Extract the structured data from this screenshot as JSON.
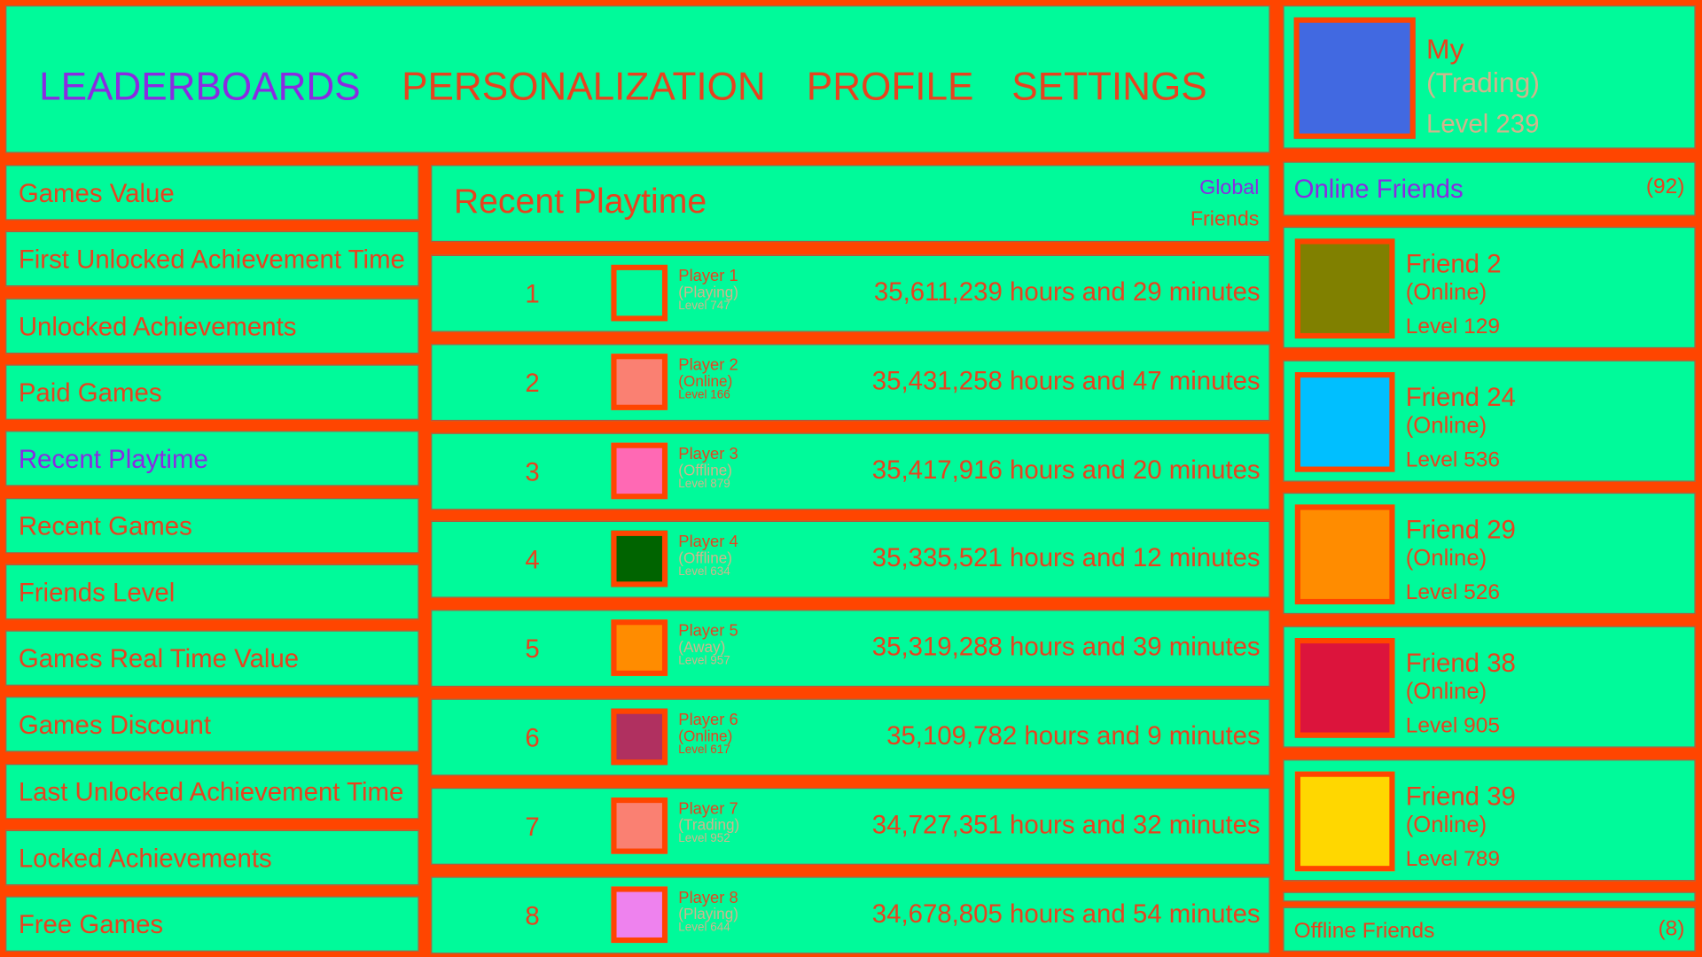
{
  "nav": {
    "items": [
      {
        "label": "LEADERBOARDS",
        "active": true
      },
      {
        "label": "PERSONALIZATION"
      },
      {
        "label": "PROFILE"
      },
      {
        "label": "SETTINGS"
      }
    ]
  },
  "profile": {
    "name": "My",
    "status": "(Trading)",
    "level": "Level 239",
    "avatar_color": "#4169e1"
  },
  "sidebar": {
    "items": [
      "Games Value",
      "First Unlocked Achievement Time",
      "Unlocked Achievements",
      "Paid Games",
      "Recent Playtime",
      "Recent Games",
      "Friends Level",
      "Games Real Time Value",
      "Games Discount",
      "Last Unlocked Achievement Time",
      "Locked Achievements",
      "Free Games"
    ],
    "active": "Recent Playtime"
  },
  "leaderboard": {
    "title": "Recent Playtime",
    "scope_global": "Global",
    "scope_friends": "Friends",
    "rows": [
      {
        "rank": "1",
        "name": "Player 1",
        "status": "(Playing)",
        "level": "Level 747",
        "time": "35,611,239 hours and 29 minutes",
        "color": "#00fa9a"
      },
      {
        "rank": "2",
        "name": "Player 2",
        "status": "(Online)",
        "level": "Level 166",
        "time": "35,431,258 hours and 47 minutes",
        "color": "#fa8072"
      },
      {
        "rank": "3",
        "name": "Player 3",
        "status": "(Offline)",
        "level": "Level 879",
        "time": "35,417,916 hours and 20 minutes",
        "color": "#ff69b4"
      },
      {
        "rank": "4",
        "name": "Player 4",
        "status": "(Offline)",
        "level": "Level 634",
        "time": "35,335,521 hours and 12 minutes",
        "color": "#006400"
      },
      {
        "rank": "5",
        "name": "Player 5",
        "status": "(Away)",
        "level": "Level 957",
        "time": "35,319,288 hours and 39 minutes",
        "color": "#ff8c00"
      },
      {
        "rank": "6",
        "name": "Player 6",
        "status": "(Online)",
        "level": "Level 617",
        "time": "35,109,782 hours and 9 minutes",
        "color": "#b03060"
      },
      {
        "rank": "7",
        "name": "Player 7",
        "status": "(Trading)",
        "level": "Level 952",
        "time": "34,727,351 hours and 32 minutes",
        "color": "#fa8072"
      },
      {
        "rank": "8",
        "name": "Player 8",
        "status": "(Playing)",
        "level": "Level 644",
        "time": "34,678,805 hours and 54 minutes",
        "color": "#ee82ee"
      }
    ]
  },
  "friends": {
    "online_label": "Online Friends",
    "online_count": "(92)",
    "offline_label": "Offline Friends",
    "offline_count": "(8)",
    "items": [
      {
        "name": "Friend 2",
        "status": "(Online)",
        "level": "Level 129",
        "color": "#808000"
      },
      {
        "name": "Friend 24",
        "status": "(Online)",
        "level": "Level 536",
        "color": "#00bfff"
      },
      {
        "name": "Friend 29",
        "status": "(Online)",
        "level": "Level 526",
        "color": "#ff8c00"
      },
      {
        "name": "Friend 38",
        "status": "(Online)",
        "level": "Level 905",
        "color": "#dc143c"
      },
      {
        "name": "Friend 39",
        "status": "(Online)",
        "level": "Level 789",
        "color": "#ffd700"
      }
    ]
  },
  "colors": {
    "background": "#ff4500",
    "panel": "#00fa9a",
    "accent": "#8a2be2",
    "muted": "#d2b48c"
  }
}
